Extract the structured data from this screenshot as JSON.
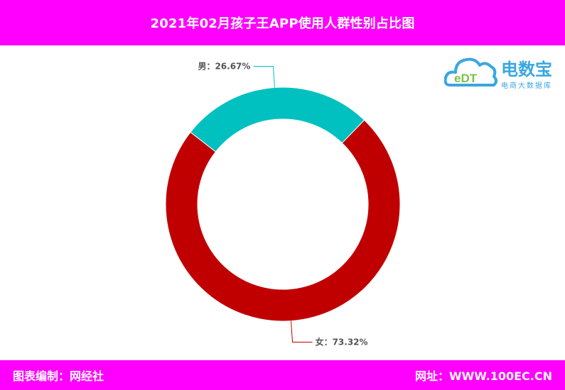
{
  "title": "2021年02月孩子王APP使用人群性别占比图",
  "footer": {
    "left": "图表编制：网经社",
    "right": "网址：WWW.100EC.CN"
  },
  "logo": {
    "brand": "电数宝",
    "sub": "电商大数据库",
    "mark_text": "eDT"
  },
  "chart_data": {
    "type": "pie",
    "variant": "donut",
    "slices": [
      {
        "label": "男",
        "value": 26.67,
        "display": "男：26.67%",
        "color": "#00c0c0"
      },
      {
        "label": "女",
        "value": 73.32,
        "display": "女：73.32%",
        "color": "#c00000"
      }
    ]
  }
}
